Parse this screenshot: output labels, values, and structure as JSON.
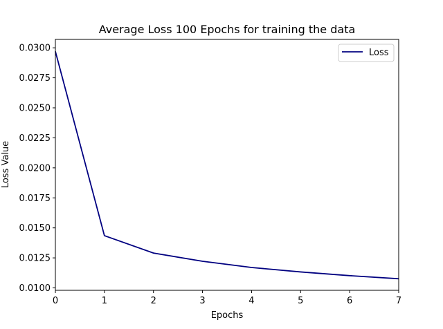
{
  "chart_data": {
    "type": "line",
    "title": "Average Loss 100 Epochs for training the data",
    "xlabel": "Epochs",
    "ylabel": "Loss Value",
    "x": [
      0,
      1,
      2,
      3,
      4,
      5,
      6,
      7
    ],
    "series": [
      {
        "name": "Loss",
        "color": "#000080",
        "values": [
          0.0297,
          0.01435,
          0.0129,
          0.01222,
          0.0117,
          0.01133,
          0.01102,
          0.01076
        ]
      }
    ],
    "xlim": [
      0,
      7
    ],
    "ylim": [
      0.0098,
      0.0307
    ],
    "x_ticks": [
      "0",
      "1",
      "2",
      "3",
      "4",
      "5",
      "6",
      "7"
    ],
    "y_ticks": [
      "0.0100",
      "0.0125",
      "0.0150",
      "0.0175",
      "0.0200",
      "0.0225",
      "0.0250",
      "0.0275",
      "0.0300"
    ],
    "grid": false,
    "legend_position": "top-right"
  }
}
